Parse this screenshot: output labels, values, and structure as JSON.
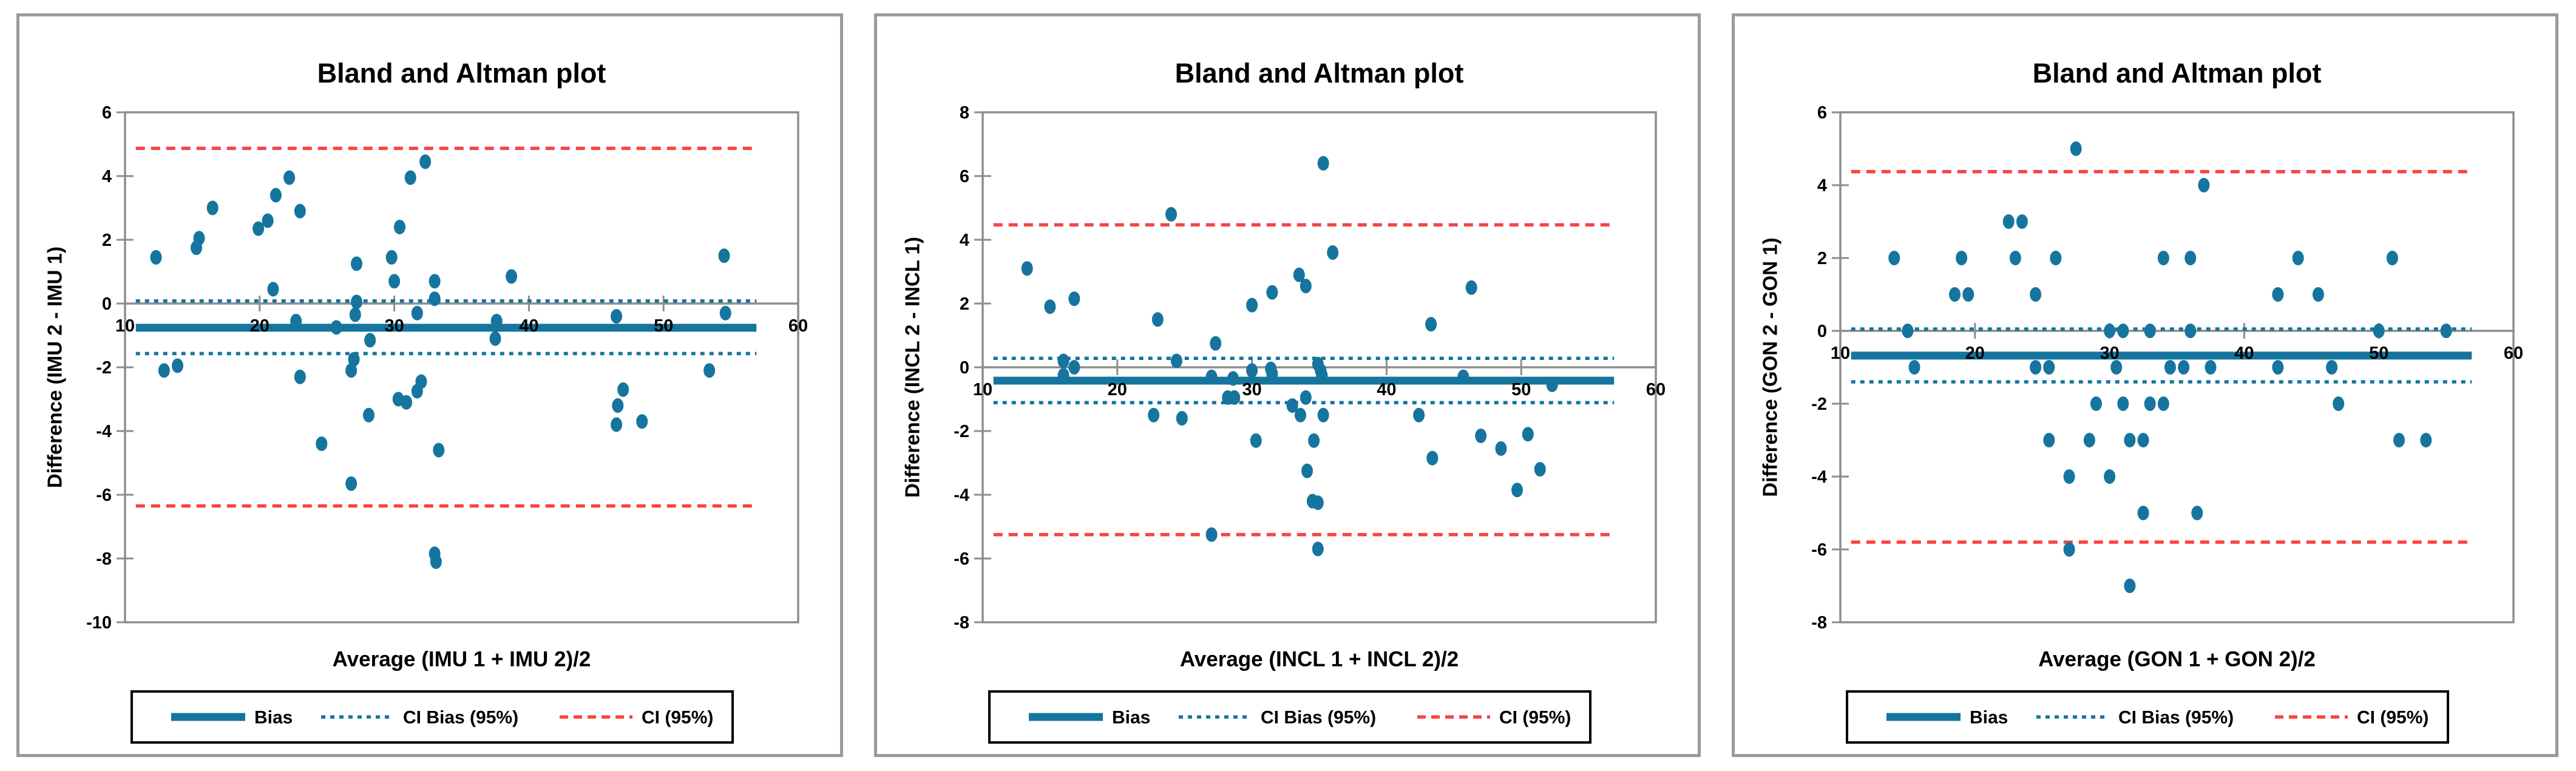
{
  "window": {
    "background": "#ffffff"
  },
  "colors": {
    "teal": "#16759E",
    "red": "#F84343",
    "axis_gray": "#8D8D8D",
    "panel_border": "#9A9A9A",
    "text": "#000000",
    "legend_border": "#000000"
  },
  "legend": {
    "items": [
      {
        "label": "Bias",
        "style": "solid-teal"
      },
      {
        "label": "CI Bias (95%)",
        "style": "dashed-teal"
      },
      {
        "label": "CI (95%)",
        "style": "dashed-red"
      }
    ]
  },
  "chart_data": [
    {
      "type": "scatter",
      "title": "Bland and Altman plot",
      "ylabel": "Difference (IMU 2 - IMU 1)",
      "xlabel": "Average (IMU 1 + IMU 2)/2",
      "xlim": [
        10,
        60
      ],
      "ylim": [
        -10,
        6
      ],
      "xticks": [
        10,
        20,
        30,
        40,
        50,
        60
      ],
      "yticks": [
        6,
        4,
        2,
        0,
        -2,
        -4,
        -6,
        -8,
        -10
      ],
      "grid": false,
      "legend_position": "bottom",
      "lines": {
        "bias": -0.76,
        "ci_bias_upper": 0.08,
        "ci_bias_lower": -1.57,
        "ci_upper": 4.87,
        "ci_lower": -6.35
      },
      "line_span_x": [
        10.8,
        56.9
      ],
      "points": [
        [
          12.3,
          1.45
        ],
        [
          12.9,
          -2.1
        ],
        [
          13.9,
          -1.95
        ],
        [
          15.3,
          1.75
        ],
        [
          15.5,
          2.05
        ],
        [
          16.5,
          3.0
        ],
        [
          19.9,
          2.35
        ],
        [
          20.6,
          2.6
        ],
        [
          21.0,
          0.45
        ],
        [
          21.2,
          3.4
        ],
        [
          22.2,
          3.95
        ],
        [
          22.7,
          -0.55
        ],
        [
          23.0,
          2.9
        ],
        [
          23.0,
          -2.3
        ],
        [
          24.6,
          -4.4
        ],
        [
          25.7,
          -0.75
        ],
        [
          26.8,
          -2.1
        ],
        [
          26.8,
          -5.65
        ],
        [
          27.0,
          -1.75
        ],
        [
          27.2,
          1.25
        ],
        [
          27.2,
          0.05
        ],
        [
          27.1,
          -0.35
        ],
        [
          28.1,
          -3.5
        ],
        [
          28.2,
          -1.15
        ],
        [
          29.8,
          1.45
        ],
        [
          30.0,
          0.7
        ],
        [
          30.3,
          -3.0
        ],
        [
          30.4,
          2.4
        ],
        [
          30.9,
          -3.1
        ],
        [
          31.2,
          3.95
        ],
        [
          31.7,
          -0.3
        ],
        [
          31.7,
          -2.75
        ],
        [
          32.0,
          -2.45
        ],
        [
          32.3,
          4.45
        ],
        [
          33.0,
          0.15
        ],
        [
          33.0,
          0.7
        ],
        [
          33.0,
          -7.85
        ],
        [
          33.1,
          -8.1
        ],
        [
          33.3,
          -4.6
        ],
        [
          37.5,
          -1.1
        ],
        [
          37.6,
          -0.55
        ],
        [
          38.7,
          0.85
        ],
        [
          46.5,
          -0.4
        ],
        [
          46.5,
          -3.8
        ],
        [
          46.6,
          -3.2
        ],
        [
          47.0,
          -2.7
        ],
        [
          48.4,
          -3.7
        ],
        [
          53.4,
          -2.1
        ],
        [
          54.5,
          1.5
        ],
        [
          54.6,
          -0.3
        ]
      ]
    },
    {
      "type": "scatter",
      "title": "Bland and Altman plot",
      "ylabel": "Difference (INCL 2 - INCL 1)",
      "xlabel": "Average (INCL 1 + INCL 2)/2",
      "xlim": [
        10,
        60
      ],
      "ylim": [
        -8,
        8
      ],
      "xticks": [
        10,
        20,
        30,
        40,
        50,
        60
      ],
      "yticks": [
        8,
        6,
        4,
        2,
        0,
        -2,
        -4,
        -6,
        -8
      ],
      "grid": false,
      "legend_position": "bottom",
      "lines": {
        "bias": -0.42,
        "ci_bias_upper": 0.28,
        "ci_bias_lower": -1.11,
        "ci_upper": 4.47,
        "ci_lower": -5.25
      },
      "line_span_x": [
        10.8,
        56.9
      ],
      "points": [
        [
          13.3,
          3.1
        ],
        [
          15.0,
          1.9
        ],
        [
          16.0,
          0.2
        ],
        [
          16.0,
          -0.25
        ],
        [
          16.8,
          2.15
        ],
        [
          16.8,
          0.0
        ],
        [
          22.7,
          -1.5
        ],
        [
          23.0,
          1.5
        ],
        [
          24.0,
          4.8
        ],
        [
          24.4,
          0.2
        ],
        [
          24.8,
          -1.6
        ],
        [
          27.0,
          -0.3
        ],
        [
          27.0,
          -5.25
        ],
        [
          27.3,
          0.75
        ],
        [
          28.2,
          -0.95
        ],
        [
          28.6,
          -0.35
        ],
        [
          28.7,
          -0.95
        ],
        [
          30.0,
          1.95
        ],
        [
          30.0,
          -0.1
        ],
        [
          30.3,
          -2.3
        ],
        [
          31.4,
          -0.05
        ],
        [
          31.5,
          -0.2
        ],
        [
          31.5,
          2.35
        ],
        [
          33.0,
          -1.2
        ],
        [
          33.5,
          2.9
        ],
        [
          33.6,
          -1.5
        ],
        [
          34.0,
          2.55
        ],
        [
          34.0,
          -0.95
        ],
        [
          34.1,
          -3.25
        ],
        [
          34.5,
          -4.2
        ],
        [
          34.6,
          -2.3
        ],
        [
          34.9,
          0.1
        ],
        [
          34.9,
          -4.25
        ],
        [
          34.9,
          -5.7
        ],
        [
          35.1,
          -0.1
        ],
        [
          35.2,
          -0.25
        ],
        [
          35.3,
          -1.5
        ],
        [
          35.3,
          6.4
        ],
        [
          36.0,
          3.6
        ],
        [
          42.4,
          -1.5
        ],
        [
          43.3,
          1.35
        ],
        [
          43.4,
          -2.85
        ],
        [
          45.7,
          -0.3
        ],
        [
          46.3,
          2.5
        ],
        [
          47.0,
          -2.15
        ],
        [
          48.5,
          -2.55
        ],
        [
          49.7,
          -3.85
        ],
        [
          50.5,
          -2.1
        ],
        [
          51.4,
          -3.2
        ],
        [
          52.3,
          -0.55
        ]
      ]
    },
    {
      "type": "scatter",
      "title": "Bland and Altman plot",
      "ylabel": "Difference (GON 2 - GON 1)",
      "xlabel": "Average (GON 1 + GON 2)/2",
      "xlim": [
        10,
        60
      ],
      "ylim": [
        -8,
        6
      ],
      "xticks": [
        10,
        20,
        30,
        40,
        50,
        60
      ],
      "yticks": [
        6,
        4,
        2,
        0,
        -2,
        -4,
        -6,
        -8
      ],
      "grid": false,
      "legend_position": "bottom",
      "lines": {
        "bias": -0.68,
        "ci_bias_upper": 0.05,
        "ci_bias_lower": -1.4,
        "ci_upper": 4.37,
        "ci_lower": -5.8
      },
      "line_span_x": [
        10.8,
        56.9
      ],
      "points": [
        [
          27.5,
          5
        ],
        [
          37,
          4
        ],
        [
          22.5,
          3
        ],
        [
          23.5,
          3
        ],
        [
          14,
          2
        ],
        [
          19,
          2
        ],
        [
          23,
          2
        ],
        [
          26,
          2
        ],
        [
          34,
          2
        ],
        [
          36,
          2
        ],
        [
          44,
          2
        ],
        [
          51,
          2
        ],
        [
          18.5,
          1
        ],
        [
          19.5,
          1
        ],
        [
          24.5,
          1
        ],
        [
          42.5,
          1
        ],
        [
          45.5,
          1
        ],
        [
          15,
          0
        ],
        [
          30,
          0
        ],
        [
          31,
          0
        ],
        [
          33,
          0
        ],
        [
          36,
          0
        ],
        [
          50,
          0
        ],
        [
          55,
          0
        ],
        [
          15.5,
          -1
        ],
        [
          24.5,
          -1
        ],
        [
          25.5,
          -1
        ],
        [
          30.5,
          -1
        ],
        [
          34.5,
          -1
        ],
        [
          35.5,
          -1
        ],
        [
          37.5,
          -1
        ],
        [
          42.5,
          -1
        ],
        [
          46.5,
          -1
        ],
        [
          29,
          -2
        ],
        [
          31,
          -2
        ],
        [
          33,
          -2
        ],
        [
          34,
          -2
        ],
        [
          47,
          -2
        ],
        [
          25.5,
          -3
        ],
        [
          28.5,
          -3
        ],
        [
          31.5,
          -3
        ],
        [
          32.5,
          -3
        ],
        [
          51.5,
          -3
        ],
        [
          53.5,
          -3
        ],
        [
          27,
          -4
        ],
        [
          30,
          -4
        ],
        [
          32.5,
          -5
        ],
        [
          36.5,
          -5
        ],
        [
          27,
          -6
        ],
        [
          31.5,
          -7
        ]
      ]
    }
  ]
}
